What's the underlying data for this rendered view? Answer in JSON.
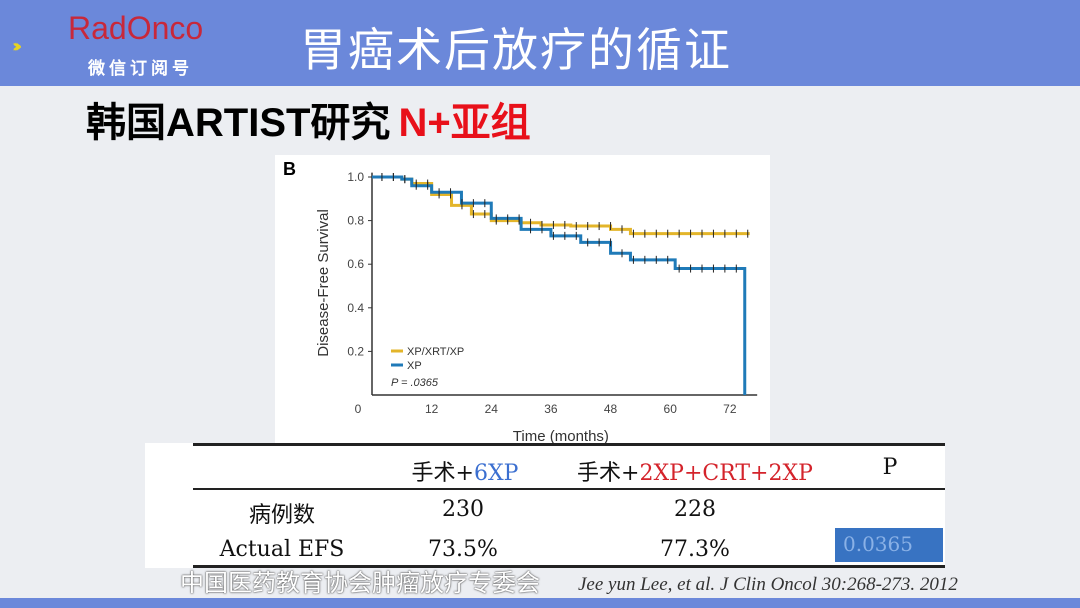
{
  "header": {
    "logo": "RadOnco",
    "logo_sub": "微信订阅号",
    "title": "胃癌术后放疗的循证"
  },
  "subtitle": {
    "main": "韩国ARTIST研究",
    "highlight": "N+亚组"
  },
  "chart_data": {
    "type": "line",
    "panel_label": "B",
    "xlabel": "Time (months)",
    "ylabel": "Disease-Free Survival",
    "xlim": [
      0,
      76
    ],
    "ylim": [
      0,
      1.0
    ],
    "xticks": [
      0,
      12,
      24,
      36,
      48,
      60,
      72
    ],
    "yticks": [
      "0.2",
      "0.4",
      "0.6",
      "0.8",
      "1.0"
    ],
    "legend_position": "bottom-left",
    "annotation": "P = .0365",
    "series": [
      {
        "name": "XP/XRT/XP",
        "color": "#e3b52a",
        "x": [
          0,
          6,
          8,
          12,
          16,
          20,
          24,
          30,
          34,
          40,
          48,
          52,
          76
        ],
        "y": [
          1,
          0.99,
          0.97,
          0.92,
          0.87,
          0.83,
          0.8,
          0.79,
          0.78,
          0.775,
          0.76,
          0.74,
          0.74
        ]
      },
      {
        "name": "XP",
        "color": "#1f7ab8",
        "x": [
          0,
          6,
          8,
          12,
          18,
          24,
          30,
          36,
          42,
          48,
          52,
          61,
          61,
          75,
          75
        ],
        "y": [
          1,
          0.99,
          0.96,
          0.93,
          0.88,
          0.81,
          0.76,
          0.73,
          0.7,
          0.65,
          0.62,
          0.62,
          0.58,
          0.58,
          0
        ]
      }
    ]
  },
  "table": {
    "headers": [
      "",
      "手术+",
      "6XP",
      "手术+",
      "2XP+CRT+2XP",
      "P"
    ],
    "rows": [
      {
        "label": "病例数",
        "a": "230",
        "b": "228"
      },
      {
        "label": "Actual EFS",
        "a": "73.5%",
        "b": "77.3%",
        "p": "0.0365"
      }
    ]
  },
  "watermark": "中国医药教育协会肿瘤放疗专委会",
  "citation": "Jee yun Lee, et al. J Clin Oncol 30:268-273. 2012"
}
